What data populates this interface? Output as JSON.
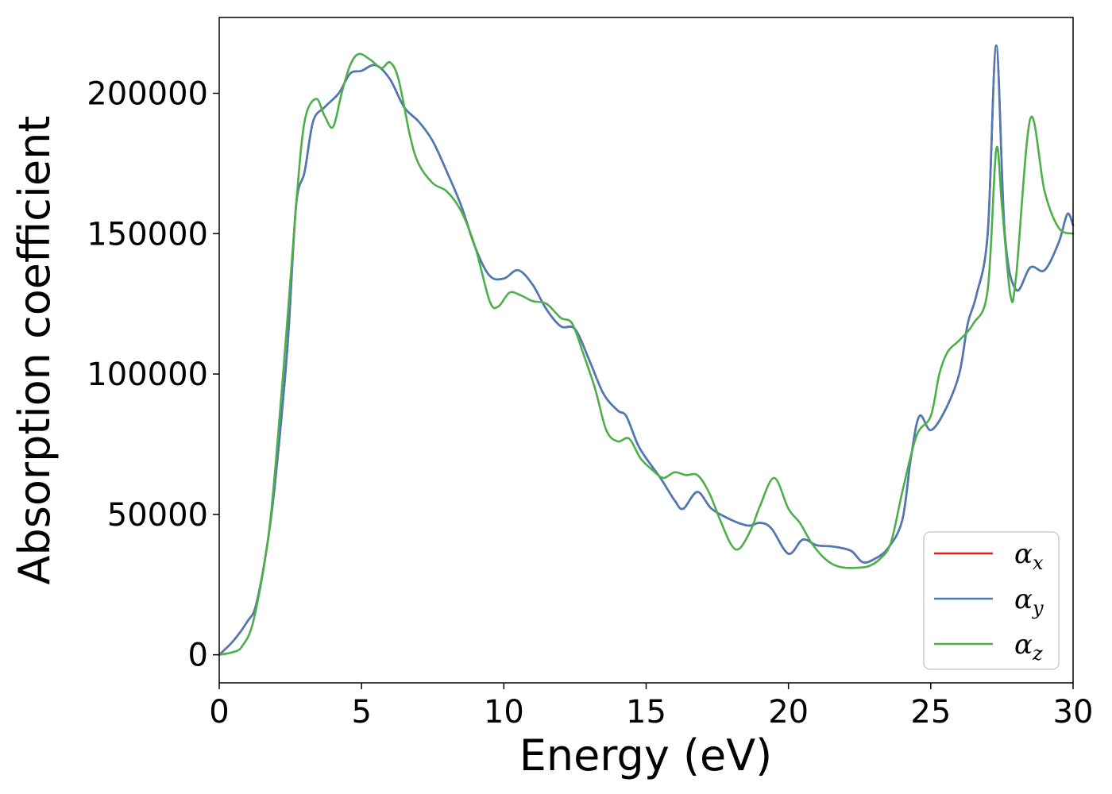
{
  "chart_data": {
    "type": "line",
    "title": "",
    "xlabel": "Energy (eV)",
    "ylabel": "Absorption coefficient",
    "xlim": [
      0,
      30
    ],
    "ylim": [
      -10000,
      227000
    ],
    "xticks": [
      0,
      5,
      10,
      15,
      20,
      25,
      30
    ],
    "xtick_labels": [
      "0",
      "5",
      "10",
      "15",
      "20",
      "25",
      "30"
    ],
    "yticks": [
      0,
      50000,
      100000,
      150000,
      200000
    ],
    "ytick_labels": [
      "0",
      "50000",
      "100000",
      "150000",
      "200000"
    ],
    "grid": false,
    "legend_position": "lower right",
    "series": [
      {
        "name": "α_x",
        "label_main": "α",
        "label_sub": "x",
        "color": "#e41a1c",
        "x": [
          0,
          0.5,
          1.0,
          1.3,
          1.7,
          2.0,
          2.4,
          2.7,
          3.0,
          3.3,
          3.7,
          4.2,
          4.6,
          5.0,
          5.5,
          6.0,
          6.5,
          7.0,
          7.5,
          8.0,
          8.5,
          9.0,
          9.5,
          10.0,
          10.5,
          11.0,
          11.5,
          12.0,
          12.5,
          13.0,
          13.5,
          14.0,
          14.3,
          14.7,
          15.0,
          15.5,
          16.0,
          16.3,
          16.8,
          17.3,
          18.0,
          18.6,
          19.0,
          19.4,
          20.0,
          20.5,
          21.0,
          21.6,
          22.2,
          22.6,
          23.0,
          23.5,
          24.0,
          24.3,
          24.6,
          25.0,
          25.5,
          26.0,
          26.3,
          26.6,
          27.0,
          27.3,
          27.6,
          28.0,
          28.5,
          29.0,
          29.5,
          29.8,
          30.0
        ],
        "y": [
          0,
          5000,
          12000,
          18000,
          40000,
          65000,
          110000,
          160000,
          172000,
          190000,
          195000,
          200000,
          207000,
          208000,
          210000,
          205000,
          195000,
          190000,
          183000,
          172000,
          160000,
          145000,
          135000,
          134000,
          137000,
          132000,
          123000,
          117000,
          116000,
          105000,
          93000,
          87000,
          85000,
          75000,
          70000,
          63000,
          55000,
          52000,
          58000,
          52000,
          48000,
          46000,
          47000,
          45000,
          36000,
          41000,
          39000,
          38500,
          37000,
          33000,
          34000,
          38000,
          48000,
          70000,
          85000,
          80000,
          87000,
          100000,
          118000,
          128000,
          150000,
          217000,
          150000,
          130000,
          138000,
          137000,
          147000,
          157000,
          153000
        ]
      },
      {
        "name": "α_y",
        "label_main": "α",
        "label_sub": "y",
        "color": "#4a7bb7",
        "x": [
          0,
          0.5,
          1.0,
          1.3,
          1.7,
          2.0,
          2.4,
          2.7,
          3.0,
          3.3,
          3.7,
          4.2,
          4.6,
          5.0,
          5.5,
          6.0,
          6.5,
          7.0,
          7.5,
          8.0,
          8.5,
          9.0,
          9.5,
          10.0,
          10.5,
          11.0,
          11.5,
          12.0,
          12.5,
          13.0,
          13.5,
          14.0,
          14.3,
          14.7,
          15.0,
          15.5,
          16.0,
          16.3,
          16.8,
          17.3,
          18.0,
          18.6,
          19.0,
          19.4,
          20.0,
          20.5,
          21.0,
          21.6,
          22.2,
          22.6,
          23.0,
          23.5,
          24.0,
          24.3,
          24.6,
          25.0,
          25.5,
          26.0,
          26.3,
          26.6,
          27.0,
          27.3,
          27.6,
          28.0,
          28.5,
          29.0,
          29.5,
          29.8,
          30.0
        ],
        "y": [
          0,
          5000,
          12000,
          18000,
          40000,
          65000,
          110000,
          160000,
          172000,
          190000,
          195000,
          200000,
          207000,
          208000,
          210000,
          205000,
          195000,
          190000,
          183000,
          172000,
          160000,
          145000,
          135000,
          134000,
          137000,
          132000,
          123000,
          117000,
          116000,
          105000,
          93000,
          87000,
          85000,
          75000,
          70000,
          63000,
          55000,
          52000,
          58000,
          52000,
          48000,
          46000,
          47000,
          45000,
          36000,
          41000,
          39000,
          38500,
          37000,
          33000,
          34000,
          38000,
          48000,
          70000,
          85000,
          80000,
          87000,
          100000,
          118000,
          128000,
          150000,
          217000,
          150000,
          130000,
          138000,
          137000,
          147000,
          157000,
          153000
        ]
      },
      {
        "name": "α_z",
        "label_main": "α",
        "label_sub": "z",
        "color": "#4daf4a",
        "x": [
          0,
          0.5,
          0.8,
          1.2,
          1.7,
          2.0,
          2.4,
          2.7,
          3.0,
          3.4,
          3.7,
          4.0,
          4.3,
          4.6,
          4.9,
          5.3,
          5.7,
          6.0,
          6.3,
          6.7,
          7.0,
          7.5,
          8.0,
          8.5,
          9.0,
          9.5,
          9.8,
          10.2,
          10.6,
          11.0,
          11.5,
          12.0,
          12.4,
          12.8,
          13.2,
          13.6,
          14.0,
          14.4,
          14.8,
          15.2,
          15.6,
          16.0,
          16.4,
          16.8,
          17.2,
          17.6,
          18.0,
          18.3,
          18.7,
          19.0,
          19.5,
          20.0,
          20.4,
          20.8,
          21.2,
          21.6,
          22.0,
          22.4,
          22.8,
          23.2,
          23.6,
          24.0,
          24.5,
          25.0,
          25.3,
          25.6,
          26.0,
          26.5,
          27.0,
          27.3,
          27.5,
          27.8,
          28.0,
          28.5,
          29.0,
          29.5,
          30.0
        ],
        "y": [
          0,
          1000,
          3000,
          12000,
          40000,
          70000,
          120000,
          160000,
          190000,
          198000,
          192000,
          188000,
          200000,
          210000,
          214000,
          212000,
          209000,
          211000,
          205000,
          185000,
          175000,
          168000,
          165000,
          158000,
          145000,
          126000,
          124000,
          129000,
          128000,
          126000,
          125000,
          120000,
          118000,
          107000,
          95000,
          80000,
          76000,
          77000,
          70000,
          66000,
          63000,
          65000,
          64000,
          64000,
          58000,
          48000,
          39000,
          38000,
          45000,
          53000,
          63000,
          52000,
          47000,
          40000,
          35000,
          32000,
          31000,
          31000,
          31500,
          34000,
          40000,
          58000,
          78000,
          85000,
          100000,
          108000,
          112000,
          118000,
          130000,
          180000,
          160000,
          128000,
          135000,
          191000,
          165000,
          152000,
          150000
        ]
      }
    ]
  }
}
